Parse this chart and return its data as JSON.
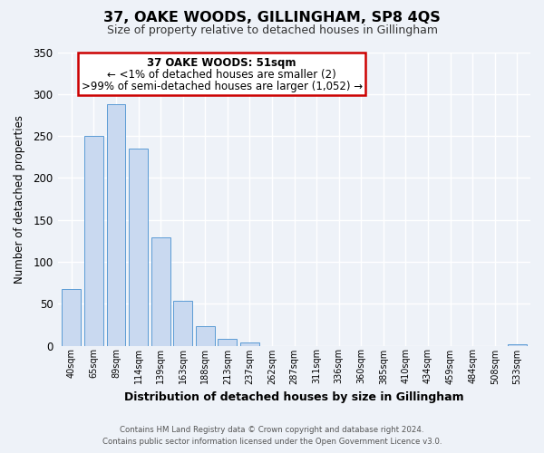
{
  "title": "37, OAKE WOODS, GILLINGHAM, SP8 4QS",
  "subtitle": "Size of property relative to detached houses in Gillingham",
  "xlabel": "Distribution of detached houses by size in Gillingham",
  "ylabel": "Number of detached properties",
  "bar_labels": [
    "40sqm",
    "65sqm",
    "89sqm",
    "114sqm",
    "139sqm",
    "163sqm",
    "188sqm",
    "213sqm",
    "237sqm",
    "262sqm",
    "287sqm",
    "311sqm",
    "336sqm",
    "360sqm",
    "385sqm",
    "410sqm",
    "434sqm",
    "459sqm",
    "484sqm",
    "508sqm",
    "533sqm"
  ],
  "bar_values": [
    68,
    250,
    288,
    235,
    129,
    53,
    23,
    8,
    4,
    0,
    0,
    0,
    0,
    0,
    0,
    0,
    0,
    0,
    0,
    0,
    2
  ],
  "bar_color": "#c9d9f0",
  "bar_edge_color": "#5b9bd5",
  "annotation_title": "37 OAKE WOODS: 51sqm",
  "annotation_line1": "← <1% of detached houses are smaller (2)",
  "annotation_line2": ">99% of semi-detached houses are larger (1,052) →",
  "annotation_box_color": "#ffffff",
  "annotation_box_edge_color": "#cc0000",
  "ylim": [
    0,
    350
  ],
  "yticks": [
    0,
    50,
    100,
    150,
    200,
    250,
    300,
    350
  ],
  "background_color": "#eef2f8",
  "grid_color": "#ffffff",
  "footer_line1": "Contains HM Land Registry data © Crown copyright and database right 2024.",
  "footer_line2": "Contains public sector information licensed under the Open Government Licence v3.0."
}
